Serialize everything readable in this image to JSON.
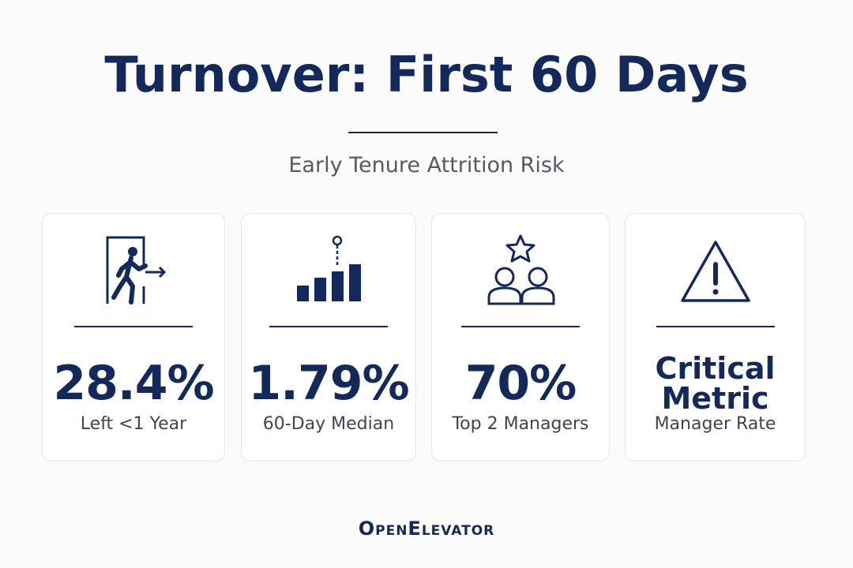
{
  "header": {
    "title": "Turnover: First 60 Days",
    "subtitle": "Early Tenure Attrition Risk"
  },
  "cards": [
    {
      "value": "28.4%",
      "label": "Left <1 Year"
    },
    {
      "value": "1.79%",
      "label": "60-Day Median"
    },
    {
      "value": "70%",
      "label": "Top 2 Managers"
    },
    {
      "value": "Critical Metric",
      "label": "Manager Rate"
    }
  ],
  "footer": {
    "brand": "OpenElevator"
  }
}
